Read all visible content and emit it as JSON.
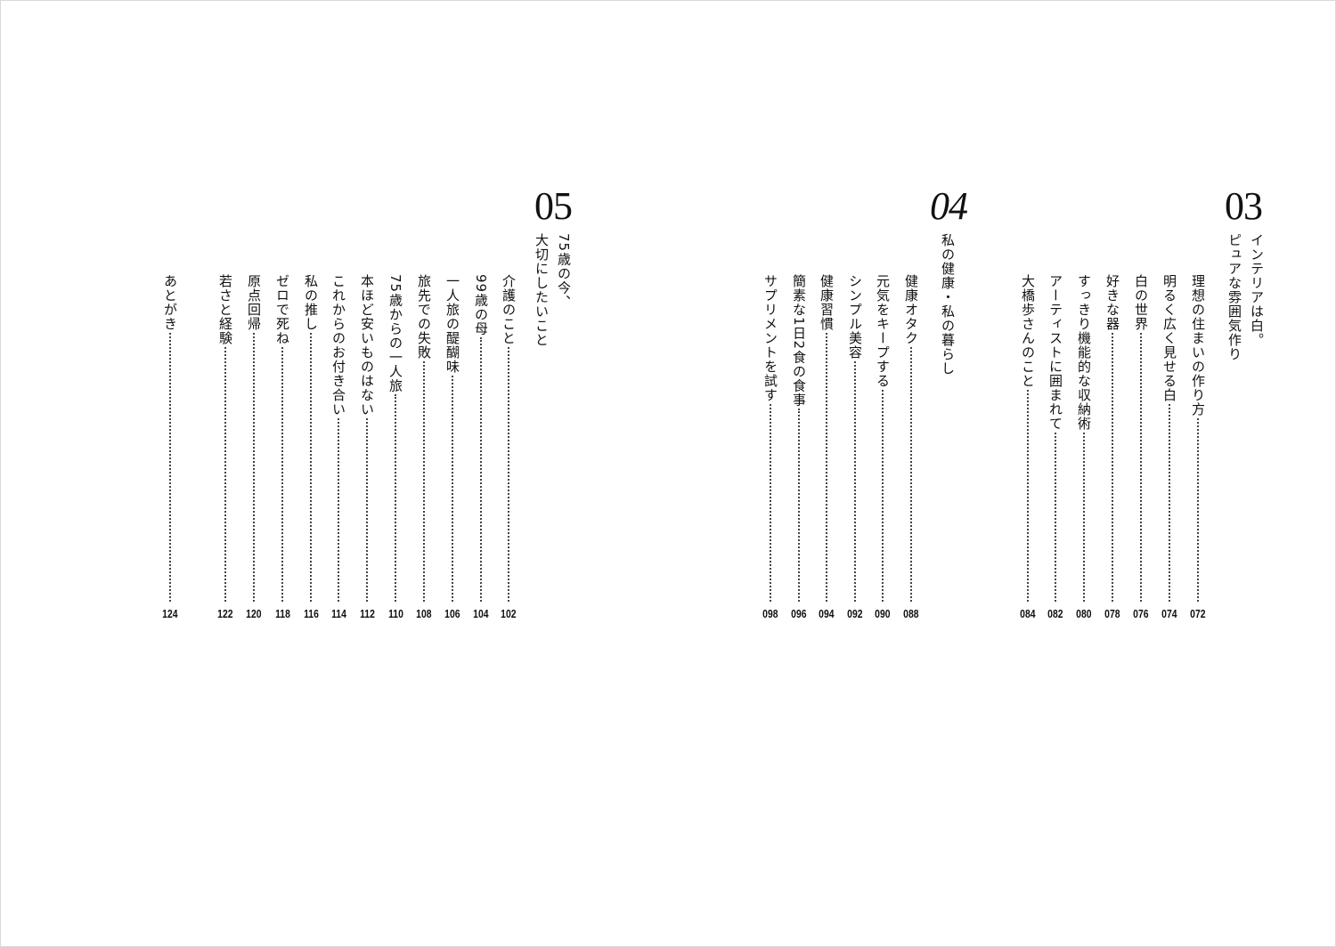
{
  "sections": [
    {
      "number": "03",
      "title_lines": [
        "インテリアは白。",
        "ピュアな雰囲気作り"
      ],
      "entries": [
        {
          "title": "理想の住まいの作り方",
          "page": "072"
        },
        {
          "title": "明るく広く見せる白",
          "page": "074"
        },
        {
          "title": "白の世界",
          "page": "076"
        },
        {
          "title": "好きな器",
          "page": "078"
        },
        {
          "title": "すっきり機能的な収納術",
          "page": "080"
        },
        {
          "title": "アーティストに囲まれて",
          "page": "082"
        },
        {
          "title": "大橋歩さんのこと",
          "page": "084"
        }
      ]
    },
    {
      "number": "04",
      "title_lines": [
        "私の健康・私の暮らし"
      ],
      "entries": [
        {
          "title": "健康オタク",
          "page": "088"
        },
        {
          "title": "元気をキープする",
          "page": "090"
        },
        {
          "title": "シンプル美容",
          "page": "092"
        },
        {
          "title": "健康習慣",
          "page": "094"
        },
        {
          "title": "簡素な1日2食の食事",
          "page": "096"
        },
        {
          "title": "サプリメントを試す",
          "page": "098"
        }
      ]
    },
    {
      "number": "05",
      "title_lines": [
        "75歳の今、",
        "大切にしたいこと"
      ],
      "entries": [
        {
          "title": "介護のこと",
          "page": "102"
        },
        {
          "title": "99歳の母",
          "page": "104"
        },
        {
          "title": "一人旅の醍醐味",
          "page": "106"
        },
        {
          "title": "旅先での失敗",
          "page": "108"
        },
        {
          "title": "75歳からの一人旅",
          "page": "110"
        },
        {
          "title": "本ほど安いものはない",
          "page": "112"
        },
        {
          "title": "これからのお付き合い",
          "page": "114"
        },
        {
          "title": "私の推し",
          "page": "116"
        },
        {
          "title": "ゼロで死ね",
          "page": "118"
        },
        {
          "title": "原点回帰",
          "page": "120"
        },
        {
          "title": "若さと経験",
          "page": "122"
        },
        {
          "title": "あとがき",
          "page": "124"
        }
      ]
    }
  ]
}
